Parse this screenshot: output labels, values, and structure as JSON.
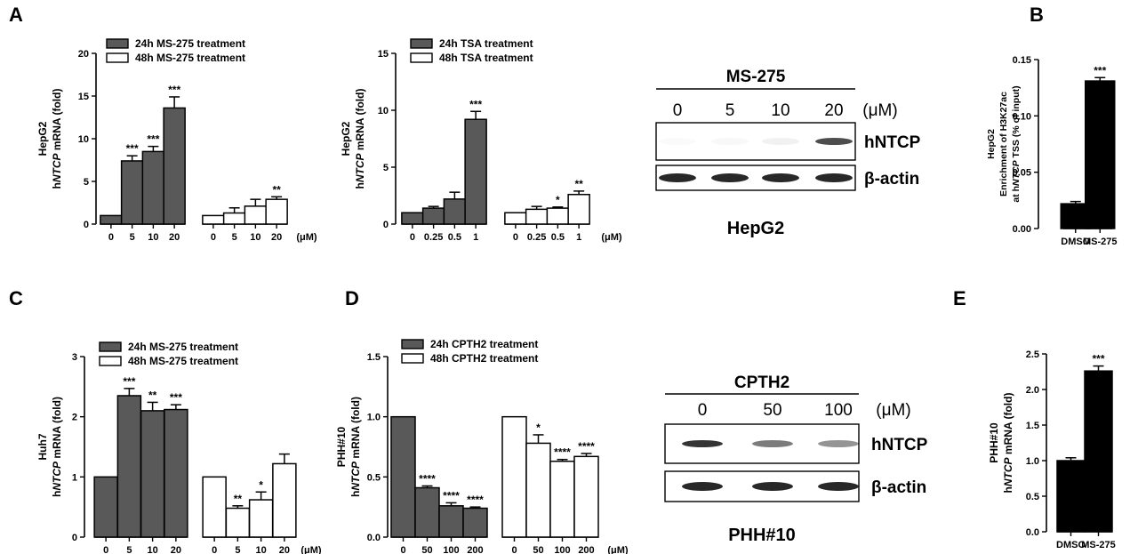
{
  "chart_data": [
    {
      "id": "A1",
      "panel_label": "A",
      "type": "bar",
      "ylabel_lines": [
        "HepG2",
        "hNTCP mRNA (fold)"
      ],
      "ylim": [
        0,
        20
      ],
      "yticks": [
        "0",
        "5",
        "10",
        "15",
        "20"
      ],
      "unit": "(μM)",
      "series": [
        {
          "name": "24h MS-275 treatment",
          "fill": "#595959",
          "categories": [
            "0",
            "5",
            "10",
            "20"
          ],
          "values": [
            1.0,
            7.4,
            8.5,
            13.6
          ],
          "errors": [
            0,
            0.6,
            0.6,
            1.3
          ],
          "sig": [
            "",
            "***",
            "***",
            "***"
          ]
        },
        {
          "name": "48h MS-275 treatment",
          "fill": "#ffffff",
          "categories": [
            "0",
            "5",
            "10",
            "20"
          ],
          "values": [
            1.0,
            1.3,
            2.1,
            2.9
          ],
          "errors": [
            0,
            0.6,
            0.8,
            0.3
          ],
          "sig": [
            "",
            "",
            "",
            "**"
          ]
        }
      ]
    },
    {
      "id": "A2",
      "panel_label": "",
      "type": "bar",
      "ylabel_lines": [
        "HepG2",
        "hNTCP mRNA (fold)"
      ],
      "ylim": [
        0,
        15
      ],
      "yticks": [
        "0",
        "5",
        "10",
        "15"
      ],
      "unit": "(μM)",
      "series": [
        {
          "name": "24h TSA treatment",
          "fill": "#595959",
          "categories": [
            "0",
            "0.25",
            "0.5",
            "1"
          ],
          "values": [
            1.0,
            1.4,
            2.2,
            9.2
          ],
          "errors": [
            0,
            0.15,
            0.6,
            0.7
          ],
          "sig": [
            "",
            "",
            "",
            "***"
          ]
        },
        {
          "name": "48h TSA treatment",
          "fill": "#ffffff",
          "categories": [
            "0",
            "0.25",
            "0.5",
            "1"
          ],
          "values": [
            1.0,
            1.3,
            1.4,
            2.6
          ],
          "errors": [
            0,
            0.25,
            0.1,
            0.3
          ],
          "sig": [
            "",
            "",
            "*",
            "**"
          ]
        }
      ]
    },
    {
      "id": "B",
      "panel_label": "B",
      "type": "bar",
      "ylabel_lines": [
        "HepG2",
        "Enrichment of H3K27ac",
        "at hNTCP TSS (% of input)"
      ],
      "ylim": [
        0,
        0.15
      ],
      "yticks": [
        "0.00",
        "0.05",
        "0.10",
        "0.15"
      ],
      "unit": "",
      "series": [
        {
          "name": "",
          "fill": "#000000",
          "categories": [
            "DMSO",
            "MS-275"
          ],
          "values": [
            0.022,
            0.131
          ],
          "errors": [
            0.002,
            0.003
          ],
          "sig": [
            "",
            "***"
          ]
        }
      ]
    },
    {
      "id": "C",
      "panel_label": "C",
      "type": "bar",
      "ylabel_lines": [
        "Huh7",
        "hNTCP mRNA (fold)"
      ],
      "ylim": [
        0,
        3
      ],
      "yticks": [
        "0",
        "1",
        "2",
        "3"
      ],
      "unit": "(μM)",
      "series": [
        {
          "name": "24h MS-275 treatment",
          "fill": "#595959",
          "categories": [
            "0",
            "5",
            "10",
            "20"
          ],
          "values": [
            1.0,
            2.35,
            2.1,
            2.12
          ],
          "errors": [
            0,
            0.12,
            0.14,
            0.08
          ],
          "sig": [
            "",
            "***",
            "**",
            "***"
          ]
        },
        {
          "name": "48h MS-275 treatment",
          "fill": "#ffffff",
          "categories": [
            "0",
            "5",
            "10",
            "20"
          ],
          "values": [
            1.0,
            0.48,
            0.62,
            1.22
          ],
          "errors": [
            0,
            0.04,
            0.13,
            0.16
          ],
          "sig": [
            "",
            "**",
            "*",
            ""
          ]
        }
      ]
    },
    {
      "id": "D",
      "panel_label": "D",
      "type": "bar",
      "ylabel_lines": [
        "PHH#10",
        "hNTCP mRNA (fold)"
      ],
      "ylim": [
        0,
        1.5
      ],
      "yticks": [
        "0.0",
        "0.5",
        "1.0",
        "1.5"
      ],
      "unit": "(μM)",
      "series": [
        {
          "name": "24h CPTH2 treatment",
          "fill": "#595959",
          "categories": [
            "0",
            "50",
            "100",
            "200"
          ],
          "values": [
            1.0,
            0.41,
            0.26,
            0.24
          ],
          "errors": [
            0,
            0.015,
            0.025,
            0.01
          ],
          "sig": [
            "",
            "****",
            "****",
            "****"
          ]
        },
        {
          "name": "48h CPTH2 treatment",
          "fill": "#ffffff",
          "categories": [
            "0",
            "50",
            "100",
            "200"
          ],
          "values": [
            1.0,
            0.78,
            0.63,
            0.67
          ],
          "errors": [
            0,
            0.07,
            0.015,
            0.025
          ],
          "sig": [
            "",
            "*",
            "****",
            "****"
          ]
        }
      ]
    },
    {
      "id": "E",
      "panel_label": "E",
      "type": "bar",
      "ylabel_lines": [
        "PHH#10",
        "hNTCP mRNA (fold)"
      ],
      "ylim": [
        0,
        2.5
      ],
      "yticks": [
        "0.0",
        "0.5",
        "1.0",
        "1.5",
        "2.0",
        "2.5"
      ],
      "unit": "",
      "series": [
        {
          "name": "",
          "fill": "#000000",
          "categories": [
            "DMSO",
            "MS-275"
          ],
          "values": [
            1.0,
            2.26
          ],
          "errors": [
            0.04,
            0.07
          ],
          "sig": [
            "",
            "***"
          ]
        }
      ]
    }
  ],
  "blots": [
    {
      "id": "blot-hepg2",
      "treatment": "MS-275",
      "concentrations": [
        "0",
        "5",
        "10",
        "20"
      ],
      "unit": "(μM)",
      "rows": [
        "hNTCP",
        "β-actin"
      ],
      "cell_line": "HepG2",
      "ntcp_intensity": [
        0.02,
        0.03,
        0.06,
        0.75
      ]
    },
    {
      "id": "blot-phh",
      "treatment": "CPTH2",
      "concentrations": [
        "0",
        "50",
        "100"
      ],
      "unit": "(μM)",
      "rows": [
        "hNTCP",
        "β-actin"
      ],
      "cell_line": "PHH#10",
      "ntcp_intensity": [
        0.85,
        0.55,
        0.45
      ]
    }
  ]
}
